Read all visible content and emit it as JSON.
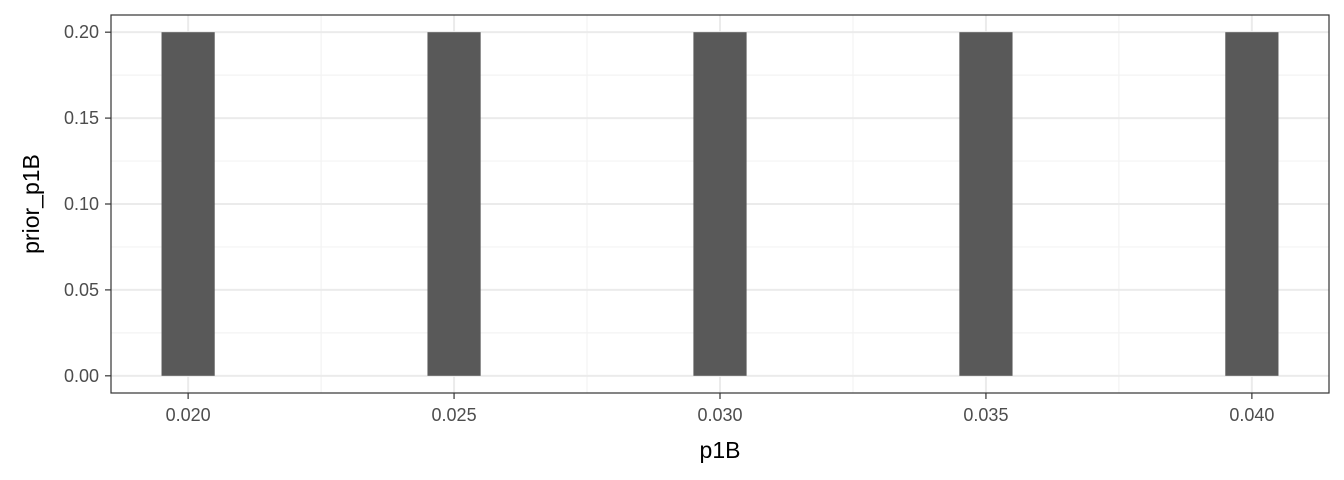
{
  "chart_data": {
    "type": "bar",
    "title": "",
    "xlabel": "p1B",
    "ylabel": "prior_p1B",
    "x": [
      0.02,
      0.025,
      0.03,
      0.035,
      0.04
    ],
    "values": [
      0.2,
      0.2,
      0.2,
      0.2,
      0.2
    ],
    "xlim": [
      0.01855,
      0.04145
    ],
    "ylim": [
      -0.01,
      0.21
    ],
    "x_ticks": [
      0.02,
      0.025,
      0.03,
      0.035,
      0.04
    ],
    "x_tick_labels": [
      "0.020",
      "0.025",
      "0.030",
      "0.035",
      "0.040"
    ],
    "y_ticks": [
      0.0,
      0.05,
      0.1,
      0.15,
      0.2
    ],
    "y_tick_labels": [
      "0.00",
      "0.05",
      "0.10",
      "0.15",
      "0.20"
    ],
    "bar_width": 0.001,
    "grid": true,
    "legend": "none"
  },
  "colors": {
    "bar": "#595959",
    "panel_border": "#333333",
    "grid_major": "#ebebeb",
    "grid_minor": "#f3f3f3",
    "tick": "#333333",
    "tick_label": "#4d4d4d",
    "axis_title": "#000000"
  }
}
